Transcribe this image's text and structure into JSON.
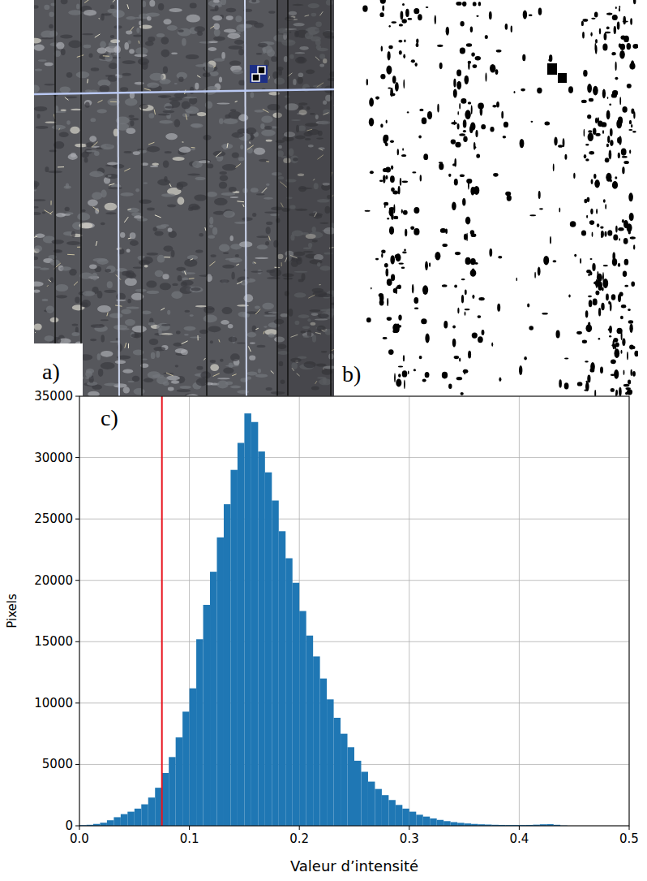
{
  "panels": [
    {
      "label": "a)"
    },
    {
      "label": "b)"
    }
  ],
  "chart_data": {
    "type": "histogram",
    "panel_label": "c)",
    "x_label": "Valeur d’intensité",
    "y_label": "Pixels",
    "bins": [
      0,
      0.00625,
      0.0125,
      0.01875,
      0.025,
      0.03125,
      0.0375,
      0.04375,
      0.05,
      0.05625,
      0.0625,
      0.06875,
      0.075,
      0.08125,
      0.0875,
      0.09375,
      0.1,
      0.10625,
      0.1125,
      0.11875,
      0.125,
      0.13125,
      0.1375,
      0.14375,
      0.15,
      0.15625,
      0.1625,
      0.16875,
      0.175,
      0.18125,
      0.1875,
      0.19375,
      0.2,
      0.20625,
      0.2125,
      0.21875,
      0.225,
      0.23125,
      0.2375,
      0.24375,
      0.25,
      0.25625,
      0.2625,
      0.26875,
      0.275,
      0.28125,
      0.2875,
      0.29375,
      0.3,
      0.30625,
      0.3125,
      0.31875,
      0.325,
      0.33125,
      0.3375,
      0.34375,
      0.35,
      0.35625,
      0.3625,
      0.36875,
      0.375,
      0.38125,
      0.3875,
      0.39375,
      0.4,
      0.40625,
      0.4125,
      0.41875,
      0.425,
      0.43125,
      0.4375,
      0.44375,
      0.45,
      0.45625,
      0.4625,
      0.46875,
      0.475,
      0.48125,
      0.4875,
      0.49375,
      0.5
    ],
    "values": [
      50,
      80,
      150,
      250,
      450,
      700,
      950,
      1150,
      1400,
      1750,
      2300,
      3100,
      4300,
      5600,
      7200,
      9300,
      11200,
      15200,
      18000,
      20700,
      23500,
      26200,
      29000,
      31200,
      33600,
      32900,
      30500,
      28800,
      26500,
      24000,
      21800,
      19800,
      17500,
      15500,
      13800,
      12000,
      10300,
      8800,
      7500,
      6400,
      5300,
      4400,
      3600,
      3000,
      2500,
      2100,
      1700,
      1400,
      1150,
      900,
      750,
      600,
      480,
      380,
      300,
      240,
      190,
      150,
      120,
      100,
      80,
      70,
      60,
      60,
      60,
      70,
      90,
      120,
      130,
      80,
      20,
      0,
      0,
      0,
      0,
      0,
      0,
      0,
      0,
      0
    ],
    "color": "#1f77b4",
    "threshold": 0.075,
    "xlim": [
      0,
      0.5
    ],
    "xticks": [
      {
        "value": 0,
        "label": "0.0"
      },
      0.1,
      0.2,
      0.3,
      0.4,
      0.5
    ],
    "ylim": [
      0,
      35000
    ],
    "yticks": [
      0,
      5000,
      10000,
      15000,
      20000,
      25000,
      30000,
      35000
    ],
    "grid": true
  }
}
